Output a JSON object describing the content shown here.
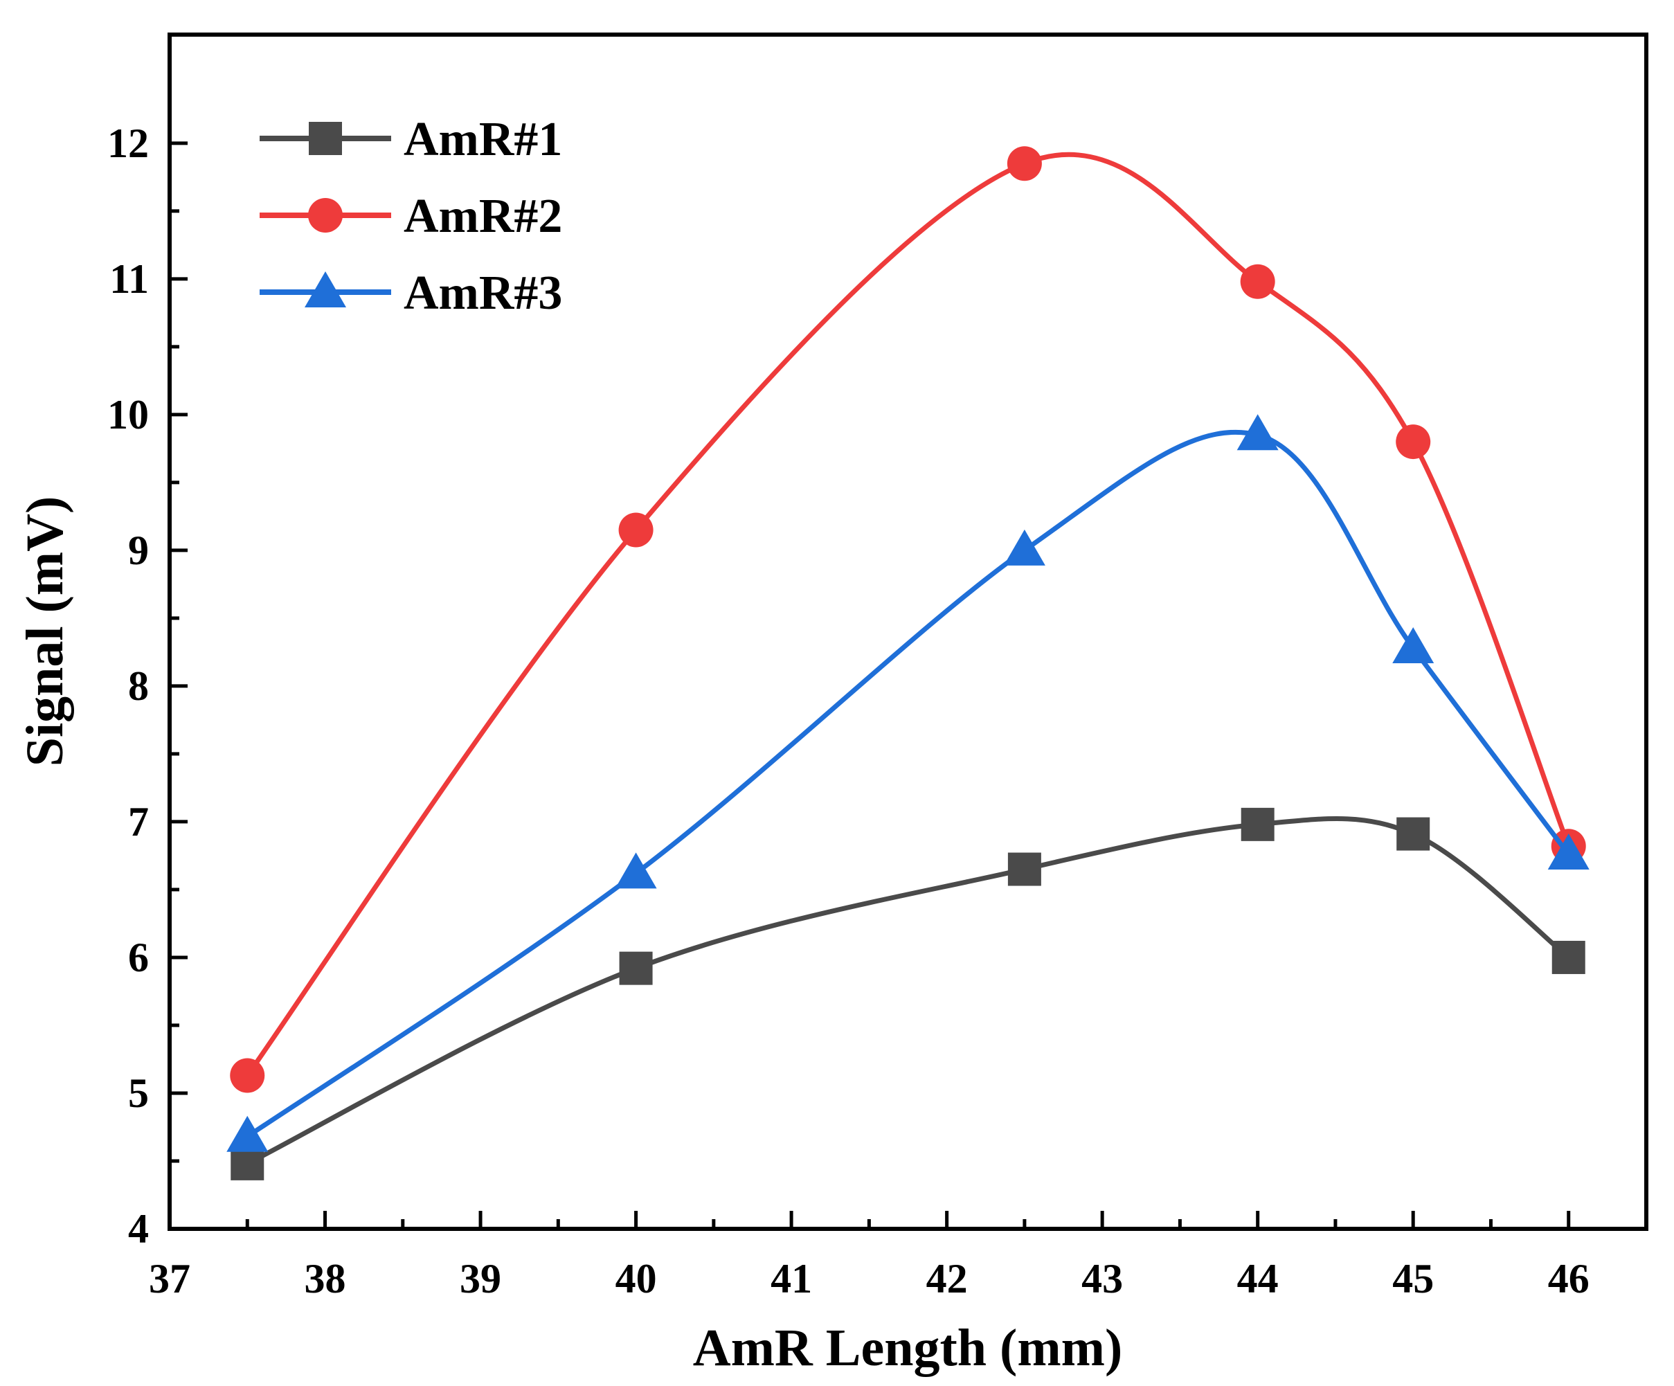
{
  "chart_data": {
    "type": "line",
    "title": "",
    "xlabel": "AmR Length (mm)",
    "ylabel": "Signal (mV)",
    "xlim": [
      37,
      46.5
    ],
    "ylim": [
      4,
      12.8
    ],
    "xticks": [
      37,
      38,
      39,
      40,
      41,
      42,
      43,
      44,
      45,
      46
    ],
    "yticks": [
      4,
      5,
      6,
      7,
      8,
      9,
      10,
      11,
      12
    ],
    "x": [
      37.5,
      40,
      42.5,
      44,
      45,
      46
    ],
    "grid": false,
    "legend_position": "top-left",
    "series": [
      {
        "name": "AmR#1",
        "marker": "square",
        "color": "#4a4a4a",
        "values": [
          4.48,
          5.92,
          6.65,
          6.98,
          6.91,
          6.0
        ]
      },
      {
        "name": "AmR#2",
        "marker": "circle",
        "color": "#ee3b3b",
        "values": [
          5.13,
          9.15,
          11.85,
          10.98,
          9.8,
          6.82
        ]
      },
      {
        "name": "AmR#3",
        "marker": "triangle",
        "color": "#1f6fd8",
        "values": [
          4.68,
          6.62,
          9.0,
          9.85,
          8.28,
          6.76
        ]
      }
    ]
  }
}
